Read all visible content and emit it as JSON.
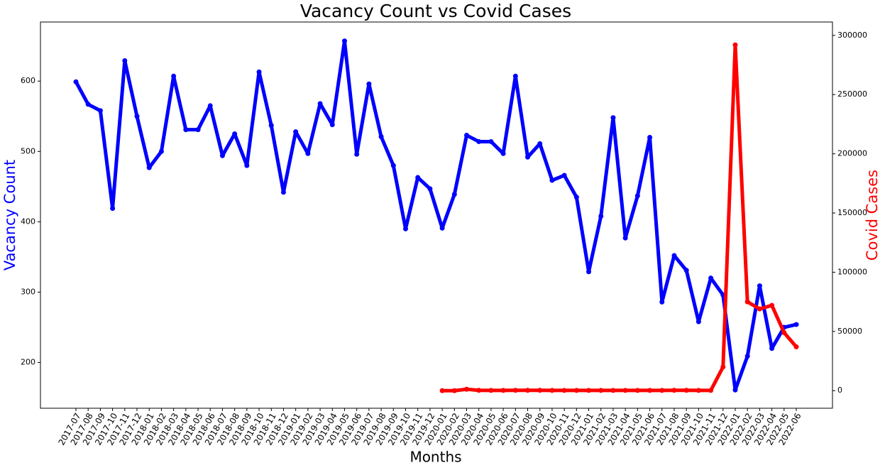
{
  "chart_data": {
    "type": "line",
    "title": "Vacancy Count vs Covid Cases",
    "xlabel": "Months",
    "ylabel": "Vacancy Count",
    "y2label": "Covid Cases",
    "categories": [
      "2017-07",
      "2017-08",
      "2017-09",
      "2017-10",
      "2017-11",
      "2017-12",
      "2018-01",
      "2018-02",
      "2018-03",
      "2018-04",
      "2018-05",
      "2018-06",
      "2018-07",
      "2018-08",
      "2018-09",
      "2018-10",
      "2018-11",
      "2018-12",
      "2019-01",
      "2019-02",
      "2019-03",
      "2019-04",
      "2019-05",
      "2019-06",
      "2019-07",
      "2019-08",
      "2019-09",
      "2019-10",
      "2019-11",
      "2019-12",
      "2020-01",
      "2020-02",
      "2020-03",
      "2020-04",
      "2020-05",
      "2020-06",
      "2020-07",
      "2020-08",
      "2020-09",
      "2020-10",
      "2020-11",
      "2020-12",
      "2021-01",
      "2021-02",
      "2021-03",
      "2021-04",
      "2021-05",
      "2021-06",
      "2021-07",
      "2021-08",
      "2021-09",
      "2021-10",
      "2021-11",
      "2021-12",
      "2022-01",
      "2022-02",
      "2022-03",
      "2022-04",
      "2022-05",
      "2022-06"
    ],
    "series": [
      {
        "name": "Vacancy Count",
        "color": "#0000ff",
        "axis": "y",
        "values": [
          599,
          567,
          558,
          419,
          629,
          550,
          477,
          500,
          607,
          531,
          531,
          565,
          494,
          525,
          480,
          613,
          537,
          442,
          528,
          497,
          568,
          538,
          657,
          496,
          596,
          521,
          480,
          390,
          463,
          447,
          391,
          439,
          523,
          514,
          514,
          497,
          607,
          492,
          511,
          459,
          466,
          435,
          329,
          408,
          548,
          377,
          437,
          520,
          286,
          352,
          331,
          258,
          320,
          296,
          161,
          209,
          309,
          220,
          250,
          254
        ]
      },
      {
        "name": "Covid Cases",
        "color": "#ff0000",
        "axis": "y2",
        "values": [
          null,
          null,
          null,
          null,
          null,
          null,
          null,
          null,
          null,
          null,
          null,
          null,
          null,
          null,
          null,
          null,
          null,
          null,
          null,
          null,
          null,
          null,
          null,
          null,
          null,
          null,
          null,
          null,
          null,
          null,
          0,
          0,
          1200,
          300,
          200,
          200,
          300,
          300,
          300,
          200,
          200,
          200,
          200,
          200,
          200,
          200,
          200,
          200,
          200,
          300,
          300,
          200,
          200,
          20000,
          292000,
          75000,
          69000,
          72000,
          49000,
          37000
        ]
      }
    ],
    "ylim": [
      135,
      684
    ],
    "yticks": [
      200,
      300,
      400,
      500,
      600
    ],
    "y2lim": [
      -14850,
      311300
    ],
    "y2ticks": [
      0,
      50000,
      100000,
      150000,
      200000,
      250000,
      300000
    ]
  }
}
